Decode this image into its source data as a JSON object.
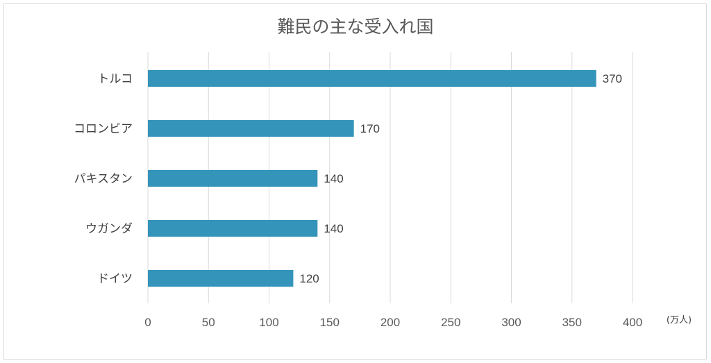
{
  "chart_data": {
    "type": "bar",
    "orientation": "horizontal",
    "title": "難民の主な受入れ国",
    "categories": [
      "トルコ",
      "コロンビア",
      "パキスタン",
      "ウガンダ",
      "ドイツ"
    ],
    "values": [
      370,
      170,
      140,
      140,
      120
    ],
    "x_ticks": [
      "0",
      "50",
      "100",
      "150",
      "200",
      "250",
      "300",
      "350",
      "400"
    ],
    "xlim": [
      0,
      400
    ],
    "unit_label": "(万人)",
    "grid": true,
    "bar_color": "#3494ba"
  }
}
